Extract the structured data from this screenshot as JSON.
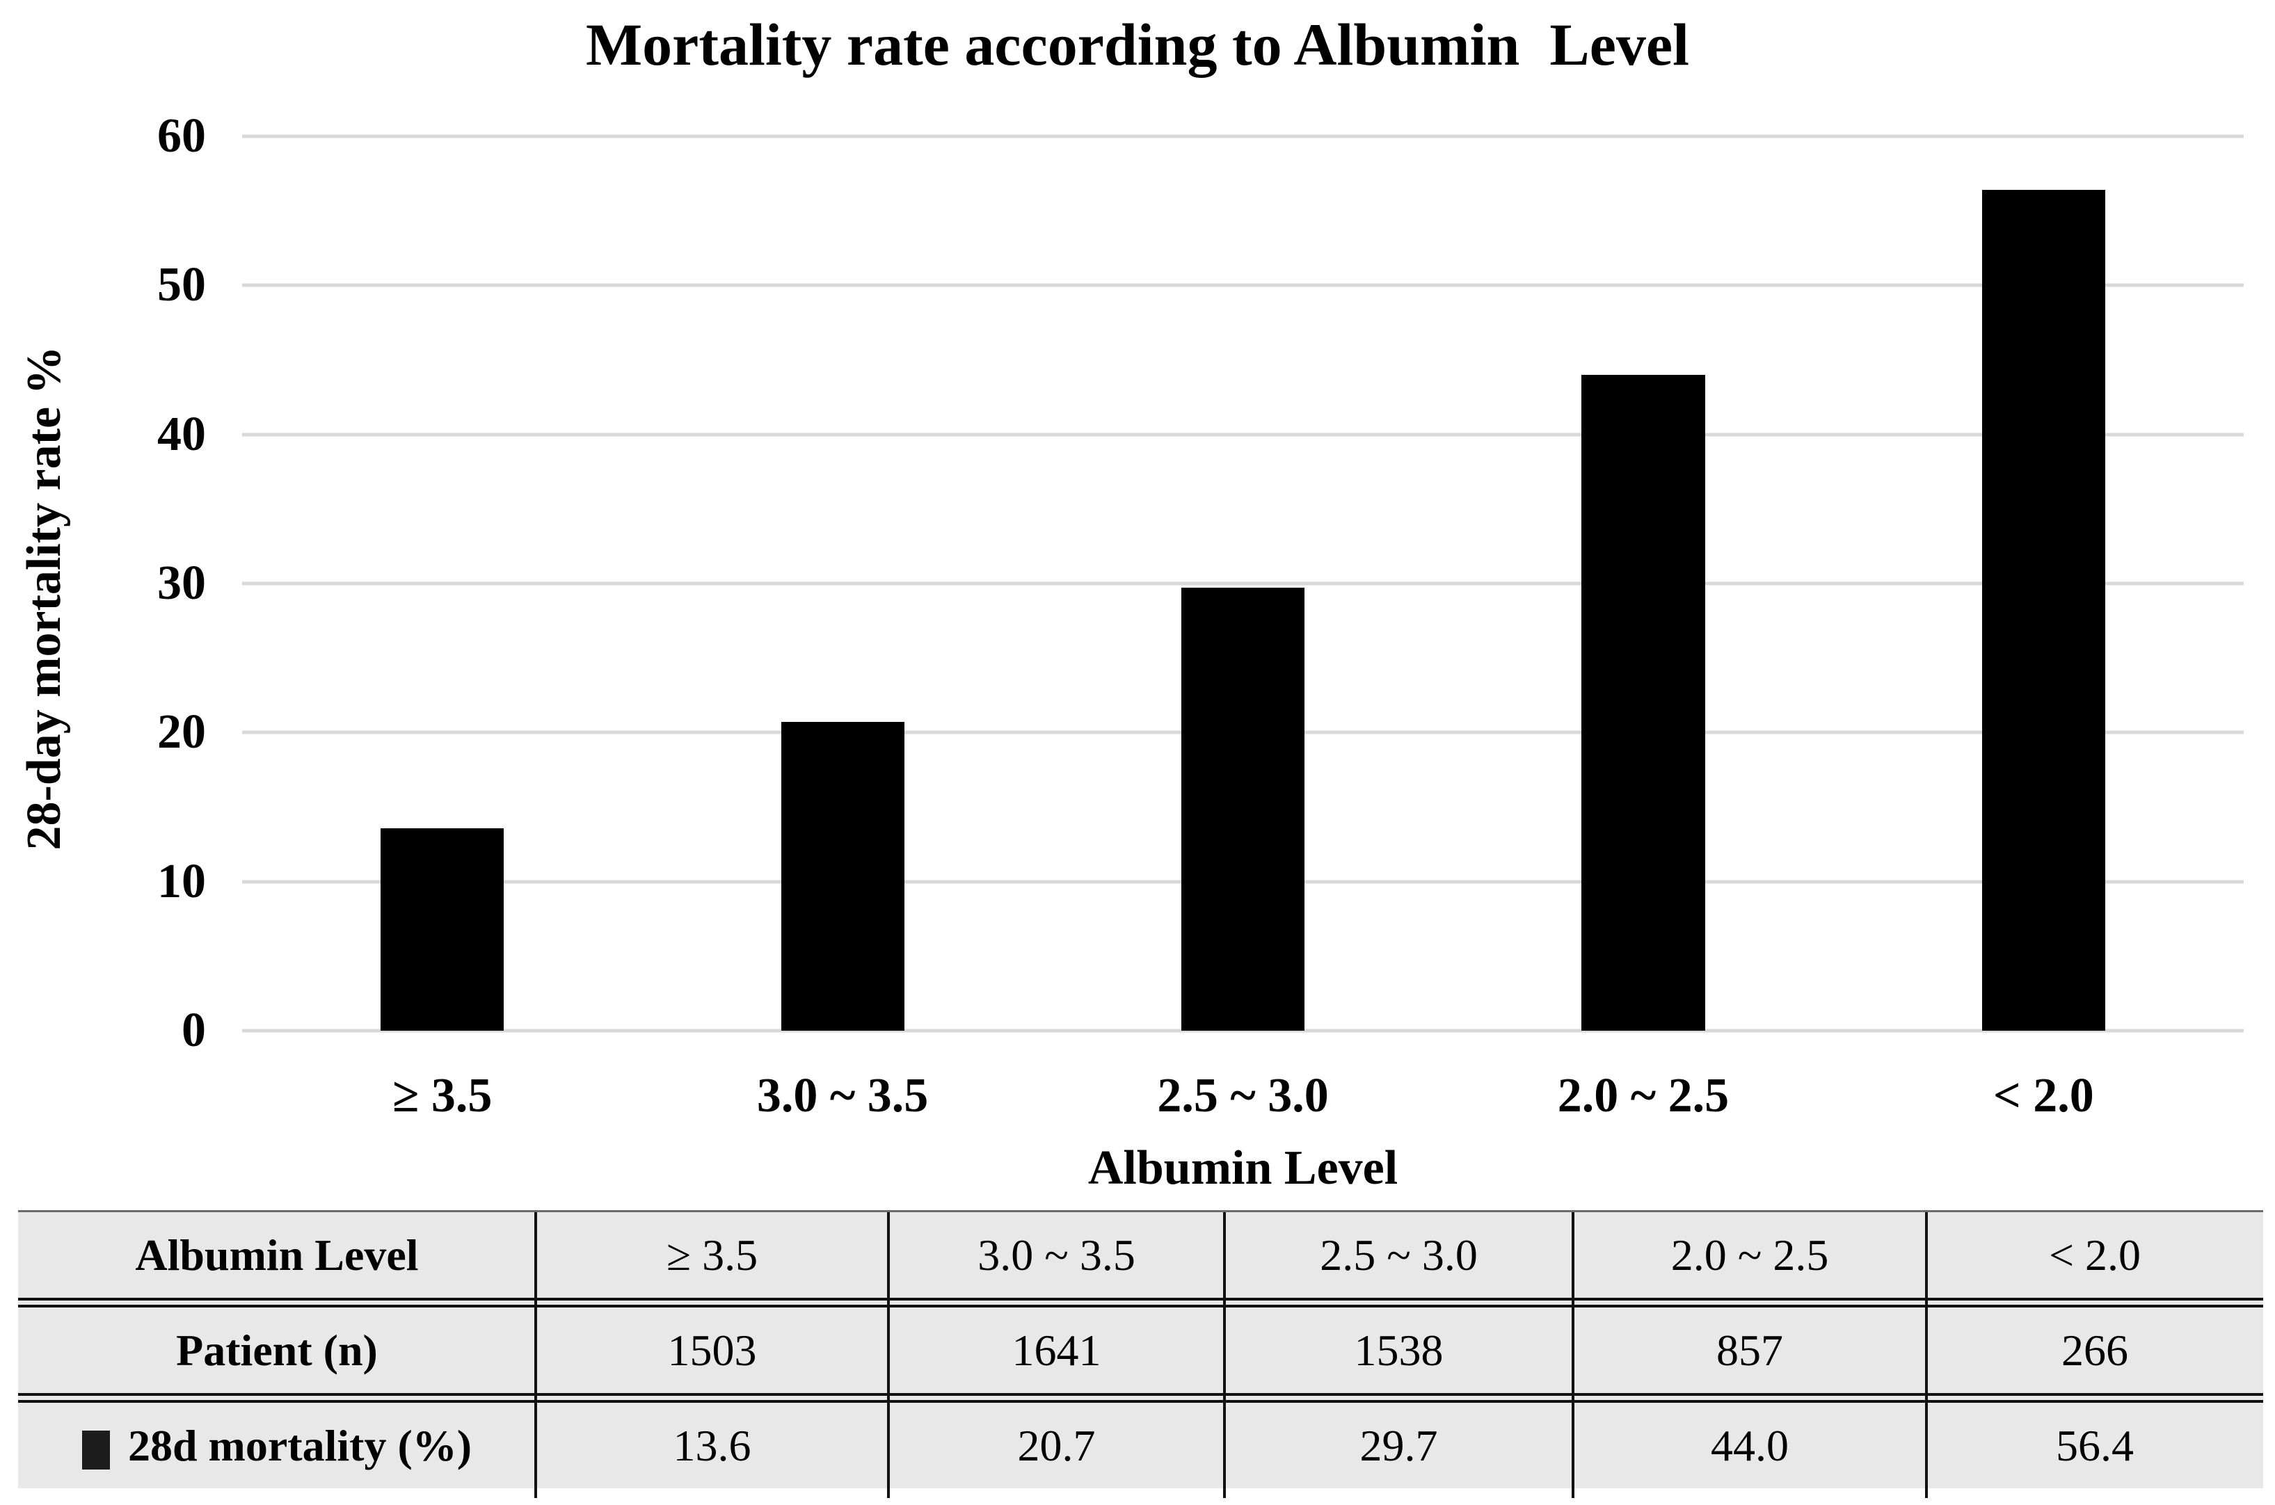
{
  "chart_data": {
    "type": "bar",
    "title": "Mortality rate according to Albumin  Level",
    "xlabel": "Albumin Level",
    "ylabel": "28-day mortality rate %",
    "categories": [
      "≥ 3.5",
      "3.0 ~ 3.5",
      "2.5 ~ 3.0",
      "2.0 ~ 2.5",
      "< 2.0"
    ],
    "series": [
      {
        "name": "Patient (n)",
        "plotted_as_bars": false,
        "values": [
          1503,
          1641,
          1538,
          857,
          266
        ]
      },
      {
        "name": "28d mortality (%)",
        "plotted_as_bars": true,
        "values": [
          13.6,
          20.7,
          29.7,
          44.0,
          56.4
        ]
      }
    ],
    "ylim": [
      0,
      60
    ],
    "yticks": [
      0,
      10,
      20,
      30,
      40,
      50,
      60
    ],
    "grid": "horizontal-only",
    "legend_position": "in-table-row-label",
    "colors": {
      "bar": "#000000",
      "gridline": "#d9d9d9",
      "text": "#000000",
      "background": "#ffffff"
    }
  },
  "table": {
    "background": "#e8e8e8",
    "border_color": "#121212",
    "header_row": {
      "label": "Albumin Level",
      "values": [
        "≥ 3.5",
        "3.0 ~ 3.5",
        "2.5 ~ 3.0",
        "2.0 ~ 2.5",
        "< 2.0"
      ]
    },
    "rows": [
      {
        "label": "Patient (n)",
        "has_marker": false,
        "values": [
          "1503",
          "1641",
          "1538",
          "857",
          "266"
        ]
      },
      {
        "label": "28d mortality (%)",
        "has_marker": true,
        "values": [
          "13.6",
          "20.7",
          "29.7",
          "44.0",
          "56.4"
        ]
      }
    ]
  }
}
